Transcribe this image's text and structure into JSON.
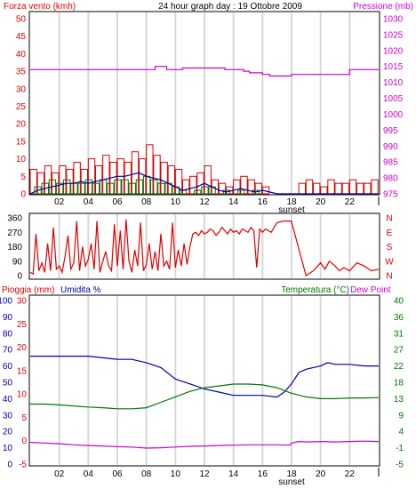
{
  "colors": {
    "red": "#dd0000",
    "magenta": "#cc00cc",
    "blue": "#0000aa",
    "green": "#007700",
    "text": "#000000",
    "grid": "#d8d8d8",
    "panel_border": "#000000"
  },
  "chart_data": [
    {
      "type": "line",
      "panel": "wind_pressure",
      "header": {
        "left": "Forza vento (kmh)",
        "center": "24 hour graph day : 19 Ottobre 2009",
        "right": "Pressione (mb)"
      },
      "y_left": {
        "ylim": [
          0,
          50
        ],
        "ticks": [
          "0",
          "5",
          "10",
          "15",
          "20",
          "25",
          "30",
          "35",
          "40",
          "45",
          "50"
        ]
      },
      "y_right": {
        "ylim": [
          975,
          1030
        ],
        "ticks": [
          "975",
          "980",
          "985",
          "990",
          "995",
          "1000",
          "1005",
          "1010",
          "1015",
          "1020",
          "1025",
          "1030"
        ]
      },
      "x_ticks": [
        "02",
        "04",
        "06",
        "08",
        "10",
        "12",
        "14",
        "16",
        "18",
        "20",
        "22"
      ],
      "x_marker_label": "sunset",
      "x_range": [
        0,
        24
      ],
      "sunset_hour": 18,
      "series": [
        {
          "axis": "right",
          "color": "magenta",
          "x": [
            0,
            8.5,
            8.6,
            9.3,
            9.4,
            10.4,
            10.5,
            13.3,
            13.4,
            14.6,
            14.7,
            15.0,
            15.1,
            15.9,
            16.0,
            16.4,
            16.5,
            17.9,
            18.0,
            21.9,
            22.0,
            24
          ],
          "y": [
            1014,
            1014,
            1015,
            1015,
            1014,
            1014,
            1014.5,
            1014.5,
            1014,
            1014,
            1013.5,
            1013.5,
            1013,
            1013,
            1012.5,
            1012.5,
            1012,
            1012,
            1012.5,
            1012.5,
            1014,
            1014
          ]
        },
        {
          "axis": "left",
          "color": "blue",
          "x": [
            0,
            0.5,
            1,
            1.5,
            2,
            2.5,
            3,
            3.5,
            4,
            4.5,
            5,
            5.5,
            6,
            6.5,
            7,
            7.5,
            8,
            8.5,
            9,
            9.5,
            10,
            10.5,
            11,
            11.5,
            12,
            12.5,
            13,
            13.5,
            14,
            14.5,
            15,
            15.5,
            16,
            16.5,
            17,
            18,
            20,
            22,
            24
          ],
          "y": [
            0,
            1,
            1.5,
            2,
            2.5,
            3,
            3,
            3.5,
            3,
            3.5,
            4,
            4.5,
            5,
            5,
            5.5,
            6,
            5,
            4.5,
            4,
            3,
            2,
            1,
            1.5,
            2,
            3,
            2,
            1,
            0.5,
            1,
            1.5,
            1,
            0.5,
            1,
            0.5,
            0,
            0,
            0,
            0,
            0
          ]
        }
      ],
      "bars": [
        {
          "name": "raffica",
          "color": "red",
          "axis": "left",
          "x": [
            0,
            0.5,
            1,
            1.5,
            2,
            2.5,
            3,
            3.5,
            4,
            4.5,
            5,
            5.5,
            6,
            6.5,
            7,
            7.5,
            8,
            8.5,
            9,
            9.5,
            10,
            10.5,
            11,
            11.5,
            12,
            12.5,
            13,
            13.5,
            14,
            14.5,
            15,
            15.5,
            16,
            18.5,
            19,
            19.5,
            20,
            20.5,
            21,
            21.5,
            22,
            22.5,
            23,
            23.5
          ],
          "values": [
            7,
            6,
            8,
            6,
            8,
            7,
            9,
            7,
            10,
            8,
            11,
            9,
            10,
            9,
            12,
            10,
            14,
            11,
            9,
            8,
            7,
            4,
            5,
            6,
            8,
            4,
            3,
            2,
            4,
            5,
            4,
            3,
            2,
            3,
            4,
            3,
            2,
            4,
            3,
            3,
            4,
            3,
            3,
            4
          ]
        },
        {
          "name": "vento medio",
          "color": "green",
          "axis": "left",
          "x": [
            0.3,
            0.8,
            1.3,
            1.8,
            2.3,
            2.8,
            3.3,
            3.8,
            4.3,
            4.8,
            5.3,
            5.8,
            6.3,
            6.8,
            7.3,
            7.8,
            8.3,
            8.8,
            9.3,
            9.8,
            10.3,
            11.3,
            11.8,
            12.3,
            13.3,
            14.3,
            15.3
          ],
          "values": [
            2,
            3,
            4,
            3,
            4,
            3,
            3,
            4,
            3,
            4,
            3,
            4,
            4,
            3,
            4,
            5,
            4,
            3,
            3,
            2,
            1,
            1,
            2,
            2,
            1,
            1,
            1
          ]
        }
      ]
    },
    {
      "type": "line",
      "panel": "wind_direction",
      "y_left": {
        "ylim": [
          0,
          360
        ],
        "ticks": [
          "0",
          "90",
          "180",
          "270",
          "360"
        ]
      },
      "y_right_labels": [
        "N",
        "W",
        "S",
        "E",
        "N"
      ],
      "x_range": [
        0,
        24
      ],
      "series": [
        {
          "color": "red",
          "x": [
            0,
            0.2,
            0.4,
            0.6,
            0.8,
            1,
            1.2,
            1.4,
            1.6,
            1.8,
            2,
            2.2,
            2.4,
            2.6,
            2.8,
            3,
            3.2,
            3.4,
            3.6,
            3.8,
            4,
            4.2,
            4.4,
            4.6,
            4.8,
            5,
            5.2,
            5.4,
            5.6,
            5.8,
            6,
            6.2,
            6.4,
            6.6,
            6.8,
            7,
            7.2,
            7.4,
            7.6,
            7.8,
            8,
            8.2,
            8.4,
            8.6,
            8.8,
            9,
            9.2,
            9.4,
            9.6,
            9.8,
            10,
            10.2,
            10.4,
            10.6,
            10.8,
            11,
            11.2,
            11.4,
            11.6,
            11.8,
            12,
            12.2,
            12.4,
            12.6,
            12.8,
            13,
            13.2,
            13.4,
            13.6,
            13.8,
            14,
            14.2,
            14.4,
            14.6,
            14.8,
            15,
            15.2,
            15.4,
            15.6,
            15.8,
            16,
            16.2,
            16.4,
            16.6,
            16.8,
            17,
            17.5,
            18,
            18.01,
            19,
            19.5,
            19.8,
            20,
            20.3,
            20.6,
            21,
            21.3,
            21.6,
            22,
            22.5,
            23,
            23.5,
            24
          ],
          "y": [
            20,
            10,
            260,
            30,
            80,
            20,
            200,
            30,
            300,
            40,
            60,
            20,
            120,
            250,
            40,
            80,
            340,
            30,
            180,
            60,
            100,
            200,
            40,
            340,
            20,
            90,
            150,
            60,
            30,
            320,
            60,
            280,
            40,
            350,
            90,
            20,
            160,
            60,
            330,
            30,
            70,
            200,
            40,
            150,
            30,
            260,
            60,
            90,
            40,
            330,
            50,
            160,
            60,
            200,
            70,
            180,
            260,
            270,
            250,
            280,
            260,
            270,
            290,
            280,
            250,
            270,
            300,
            280,
            260,
            290,
            270,
            280,
            260,
            290,
            280,
            270,
            300,
            280,
            50,
            290,
            270,
            290,
            280,
            270,
            300,
            330,
            340,
            340,
            330,
            0,
            30,
            60,
            80,
            40,
            90,
            60,
            30,
            50,
            30,
            80,
            60,
            30,
            40
          ]
        }
      ]
    },
    {
      "type": "line",
      "panel": "rain_humidity_temperature",
      "header": {
        "left_a": "Pioggia (mm)",
        "left_b": "Umidita %",
        "right_a": "Temperatura (°C)",
        "right_b": "Dew Point"
      },
      "y_left_humidity": {
        "ylim": [
          0,
          100
        ],
        "ticks": [
          "0",
          "10",
          "20",
          "30",
          "40",
          "50",
          "60",
          "70",
          "80",
          "90",
          "100"
        ]
      },
      "y_left_rain": {
        "ylim": [
          -5,
          30
        ],
        "ticks": [
          "-5",
          "0",
          "5",
          "10",
          "15",
          "20",
          "25",
          "30"
        ]
      },
      "y_right_temperature": {
        "ylim": [
          -5,
          40
        ],
        "ticks": [
          "-5",
          "-1",
          "4",
          "9",
          "13",
          "18",
          "22",
          "27",
          "31",
          "36",
          "40"
        ]
      },
      "x_ticks": [
        "02",
        "04",
        "06",
        "08",
        "10",
        "12",
        "14",
        "16",
        "18",
        "20",
        "22"
      ],
      "x_marker_label": "sunset",
      "x_range": [
        0,
        24
      ],
      "sunset_hour": 18,
      "series": [
        {
          "name": "Umidita %",
          "color": "blue",
          "axis": "humidity",
          "x": [
            0,
            2,
            4,
            5,
            6,
            7,
            8,
            9,
            10,
            11,
            12,
            13,
            14,
            15,
            16,
            17,
            17.5,
            18,
            18.5,
            19,
            20,
            20.5,
            21,
            22,
            23,
            24
          ],
          "y": [
            66,
            66,
            66,
            65,
            64,
            64,
            62,
            59,
            52,
            49,
            46,
            44,
            42,
            42,
            42,
            41,
            44,
            49,
            56,
            58,
            60,
            62,
            61,
            61,
            60,
            60
          ]
        },
        {
          "name": "Temperatura",
          "color": "green",
          "axis": "temperature",
          "x": [
            0,
            1,
            2,
            3,
            4,
            5,
            6,
            7,
            8,
            9,
            10,
            11,
            12,
            13,
            14,
            15,
            16,
            17,
            18,
            19,
            20,
            21,
            22,
            23,
            24
          ],
          "y": [
            11.5,
            11.5,
            11.3,
            11,
            10.7,
            10.5,
            10.2,
            10.2,
            10.5,
            12,
            13.5,
            15,
            16,
            16.5,
            17,
            17,
            16.8,
            16,
            14.5,
            13.5,
            13,
            13,
            13.2,
            13.2,
            13.3
          ]
        },
        {
          "name": "Dew Point",
          "color": "magenta",
          "axis": "temperature",
          "x": [
            0,
            1,
            2,
            3,
            4,
            5,
            6,
            7,
            8,
            9,
            10,
            11,
            12,
            13,
            14,
            15,
            16,
            17,
            17.9,
            18,
            18.5,
            19,
            20,
            21,
            22,
            23,
            24
          ],
          "y": [
            1,
            0.8,
            0.6,
            0.3,
            0.1,
            0,
            -0.2,
            -0.3,
            -0.6,
            -0.5,
            -0.3,
            -0.1,
            0,
            0.1,
            0.2,
            0.3,
            0.3,
            0.3,
            0.2,
            0.8,
            1.2,
            1.1,
            1.2,
            1.1,
            1.2,
            1.3,
            1.2
          ]
        }
      ]
    }
  ]
}
